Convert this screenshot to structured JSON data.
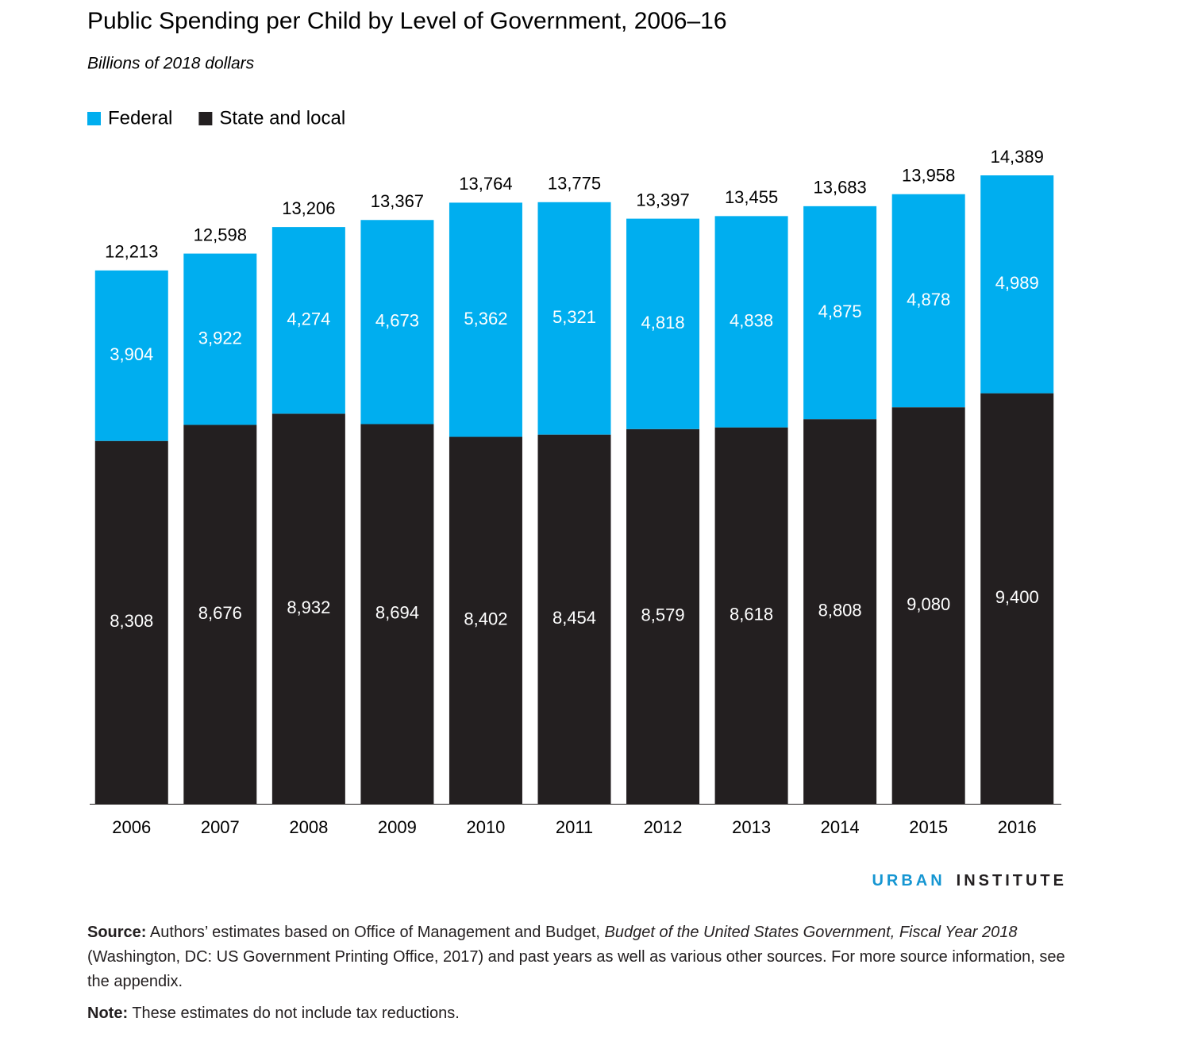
{
  "chart_data": {
    "type": "stacked_bar",
    "title": "Public Spending per Child by Level of Government, 2006–16",
    "subtitle": "Billions of 2018 dollars",
    "categories": [
      "2006",
      "2007",
      "2008",
      "2009",
      "2010",
      "2011",
      "2012",
      "2013",
      "2014",
      "2015",
      "2016"
    ],
    "series": [
      {
        "name": "State and local",
        "color": "#231f20",
        "values": [
          8308,
          8676,
          8932,
          8694,
          8402,
          8454,
          8579,
          8618,
          8808,
          9080,
          9400
        ],
        "value_labels": [
          "8,308",
          "8,676",
          "8,932",
          "8,694",
          "8,402",
          "8,454",
          "8,579",
          "8,618",
          "8,808",
          "9,080",
          "9,400"
        ]
      },
      {
        "name": "Federal",
        "color": "#00aeef",
        "values": [
          3904,
          3922,
          4274,
          4673,
          5362,
          5321,
          4818,
          4838,
          4875,
          4878,
          4989
        ],
        "value_labels": [
          "3,904",
          "3,922",
          "4,274",
          "4,673",
          "5,362",
          "5,321",
          "4,818",
          "4,838",
          "4,875",
          "4,878",
          "4,989"
        ]
      }
    ],
    "totals": {
      "values": [
        12213,
        12598,
        13206,
        13367,
        13764,
        13775,
        13397,
        13455,
        13683,
        13958,
        14389
      ],
      "value_labels": [
        "12,213",
        "12,598",
        "13,206",
        "13,367",
        "13,764",
        "13,775",
        "13,397",
        "13,455",
        "13,683",
        "13,958",
        "14,389"
      ]
    },
    "legend_order": [
      1,
      0
    ]
  },
  "brand": [
    "URBAN",
    "INSTITUTE"
  ],
  "source": {
    "label": "Source:",
    "parts": [
      "Authors’ estimates based on Office of Management and Budget, ",
      "Budget of the United States Government, Fiscal Year 2018",
      " (Washington, DC: US Government Printing Office, 2017) and past years as well as various other sources. For more source information, see the appendix."
    ]
  },
  "note": {
    "label": "Note:",
    "text": "These estimates do not include tax reductions."
  }
}
